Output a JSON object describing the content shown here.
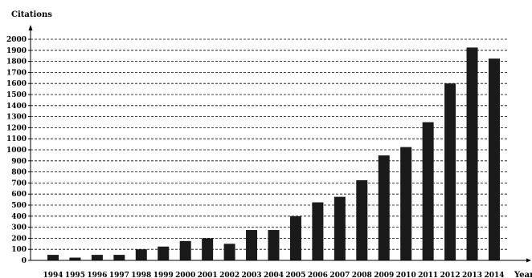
{
  "chart_data": {
    "type": "bar",
    "title": "",
    "xlabel": "Year",
    "ylabel": "Citations",
    "categories": [
      "1994",
      "1995",
      "1996",
      "1997",
      "1998",
      "1999",
      "2000",
      "2001",
      "2002",
      "2003",
      "2004",
      "2005",
      "2006",
      "2007",
      "2008",
      "2009",
      "2010",
      "2011",
      "2012",
      "2013",
      "2014"
    ],
    "values": [
      50,
      25,
      50,
      50,
      100,
      125,
      175,
      200,
      150,
      275,
      275,
      400,
      525,
      575,
      725,
      950,
      1025,
      1250,
      1600,
      1925,
      1825
    ],
    "ylim": [
      0,
      2000
    ],
    "yticks": [
      0,
      100,
      200,
      300,
      400,
      500,
      600,
      700,
      800,
      900,
      1000,
      1100,
      1200,
      1300,
      1400,
      1500,
      1600,
      1700,
      1800,
      1900,
      2000
    ],
    "grid": "horizontal-dashed",
    "bar_color": "#1a1a1a"
  }
}
